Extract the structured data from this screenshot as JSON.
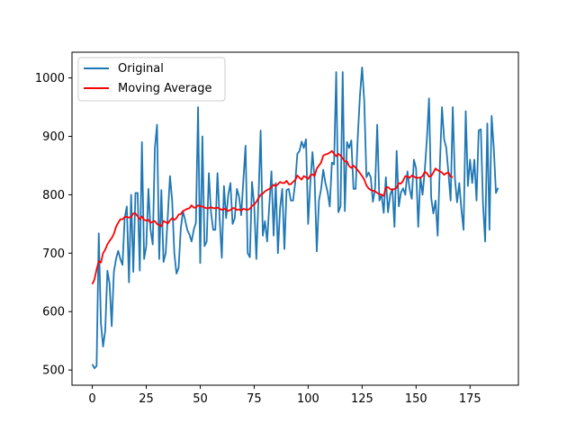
{
  "chart_data": {
    "type": "line",
    "title": "",
    "xlabel": "",
    "ylabel": "",
    "xlim": [
      -9.4,
      197.4
    ],
    "ylim": [
      474,
      1044
    ],
    "xticks": [
      0,
      25,
      50,
      75,
      100,
      125,
      150,
      175
    ],
    "yticks": [
      500,
      600,
      700,
      800,
      900,
      1000
    ],
    "grid": false,
    "legend_position": "top-left",
    "colors": {
      "original": "#1f77b4",
      "moving_average": "#ff0000"
    },
    "series": [
      {
        "name": "Original",
        "x_start": 0,
        "values": [
          510,
          503,
          507,
          734,
          580,
          540,
          568,
          670,
          648,
          575,
          668,
          690,
          704,
          690,
          680,
          760,
          780,
          650,
          800,
          668,
          803,
          803,
          670,
          890,
          690,
          712,
          810,
          740,
          715,
          880,
          920,
          690,
          808,
          685,
          700,
          765,
          832,
          790,
          700,
          665,
          675,
          742,
          772,
          757,
          740,
          732,
          720,
          740,
          752,
          950,
          683,
          900,
          712,
          720,
          837,
          770,
          740,
          740,
          837,
          760,
          692,
          815,
          760,
          800,
          820,
          750,
          760,
          810,
          797,
          765,
          826,
          884,
          700,
          693,
          822,
          782,
          690,
          795,
          910,
          730,
          755,
          720,
          782,
          840,
          730,
          820,
          700,
          777,
          810,
          707,
          808,
          810,
          790,
          790,
          820,
          870,
          875,
          891,
          880,
          895,
          750,
          820,
          873,
          826,
          703,
          790,
          810,
          843,
          820,
          805,
          780,
          855,
          852,
          1010,
          770,
          780,
          1010,
          772,
          890,
          880,
          893,
          810,
          810,
          900,
          970,
          1018,
          960,
          830,
          838,
          830,
          788,
          810,
          920,
          790,
          800,
          769,
          830,
          770,
          800,
          810,
          745,
          875,
          780,
          804,
          811,
          800,
          840,
          810,
          793,
          860,
          845,
          745,
          830,
          800,
          840,
          895,
          965,
          795,
          768,
          790,
          730,
          848,
          950,
          895,
          880,
          837,
          790,
          950,
          827,
          787,
          820,
          775,
          740,
          943,
          815,
          860,
          820,
          860,
          790,
          910,
          912,
          785,
          720,
          922,
          740,
          935,
          880,
          803,
          812
        ]
      },
      {
        "name": "Moving Average",
        "x_start": 0,
        "values": [
          647,
          655,
          672,
          686,
          684,
          700,
          706,
          715,
          721,
          726,
          733,
          745,
          752,
          758,
          758,
          762,
          762,
          761,
          762,
          768,
          768,
          763,
          758,
          763,
          757,
          756,
          757,
          752,
          754,
          755,
          750,
          748,
          746,
          755,
          753,
          751,
          756,
          760,
          757,
          760,
          766,
          767,
          772,
          774,
          776,
          777,
          782,
          778,
          778,
          782,
          780,
          780,
          778,
          777,
          777,
          779,
          777,
          777,
          778,
          776,
          774,
          776,
          775,
          772,
          774,
          777,
          777,
          774,
          775,
          773,
          776,
          775,
          774,
          776,
          781,
          783,
          788,
          794,
          800,
          802,
          806,
          808,
          810,
          813,
          817,
          815,
          818,
          822,
          820,
          820,
          824,
          818,
          818,
          822,
          825,
          833,
          829,
          826,
          832,
          830,
          827,
          833,
          835,
          832,
          845,
          850,
          855,
          867,
          869,
          870,
          872,
          875,
          870,
          866,
          870,
          867,
          862,
          857,
          857,
          849,
          846,
          850,
          846,
          842,
          837,
          832,
          826,
          816,
          811,
          808,
          807,
          806,
          803,
          801,
          800,
          798,
          812,
          813,
          810,
          808,
          810,
          812,
          820,
          819,
          824,
          832,
          831,
          829,
          833,
          831,
          829,
          829,
          829,
          832,
          839,
          837,
          831,
          832,
          838,
          845,
          842,
          840,
          838,
          834,
          837,
          838,
          831,
          830
        ]
      }
    ]
  }
}
